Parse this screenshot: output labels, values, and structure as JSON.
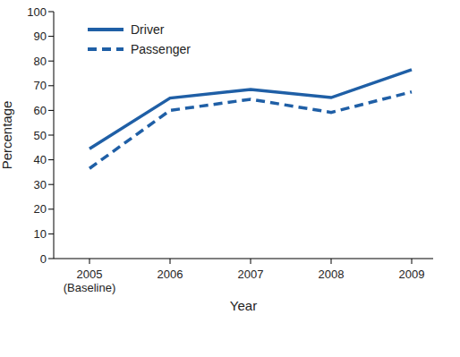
{
  "chart_data": {
    "type": "line",
    "x_label": "Year",
    "y_label": "Percentage",
    "categories": [
      "2005 (Baseline)",
      "2006",
      "2007",
      "2008",
      "2009"
    ],
    "series": [
      {
        "name": "Driver",
        "color": "#1f5fa6",
        "line_style": "solid",
        "values": [
          44.5,
          65,
          68.5,
          65.2,
          76.5
        ]
      },
      {
        "name": "Passenger",
        "color": "#1f5fa6",
        "line_style": "dashed",
        "values": [
          36.5,
          60,
          64.5,
          59.2,
          67.5
        ]
      }
    ],
    "ylim": [
      0,
      100
    ],
    "yticks": [
      0,
      10,
      20,
      30,
      40,
      50,
      60,
      70,
      80,
      90,
      100
    ],
    "grid": false,
    "legend": "upper left"
  }
}
